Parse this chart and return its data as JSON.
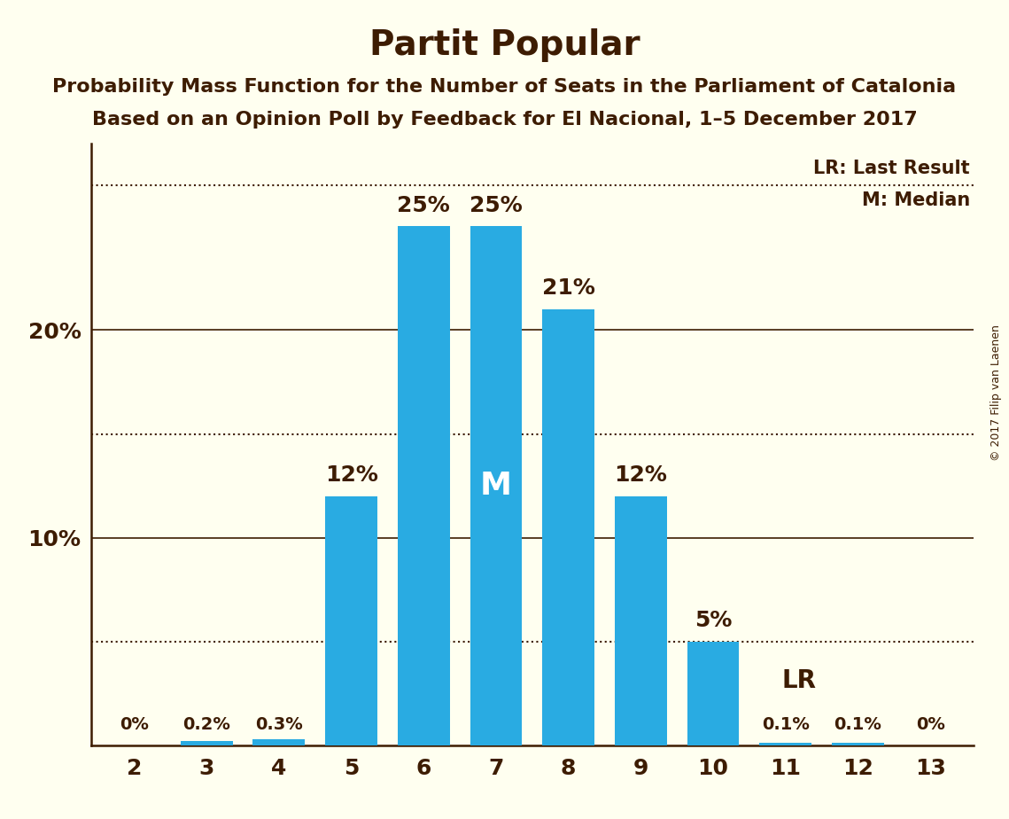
{
  "title": "Partit Popular",
  "subtitle1": "Probability Mass Function for the Number of Seats in the Parliament of Catalonia",
  "subtitle2": "Based on an Opinion Poll by Feedback for El Nacional, 1–5 December 2017",
  "copyright": "© 2017 Filip van Laenen",
  "categories": [
    2,
    3,
    4,
    5,
    6,
    7,
    8,
    9,
    10,
    11,
    12,
    13
  ],
  "values": [
    0.0,
    0.2,
    0.3,
    12.0,
    25.0,
    25.0,
    21.0,
    12.0,
    5.0,
    0.1,
    0.1,
    0.0
  ],
  "bar_color": "#29ABE2",
  "background_color": "#FFFFF0",
  "text_color": "#3D1C02",
  "bar_labels": [
    "0%",
    "0.2%",
    "0.3%",
    "12%",
    "25%",
    "25%",
    "21%",
    "12%",
    "5%",
    "0.1%",
    "0.1%",
    "0%"
  ],
  "median_seat": 7,
  "lr_seat": 11,
  "ylim": [
    0,
    29
  ],
  "solid_lines": [
    10.0,
    20.0
  ],
  "dotted_lines": [
    5.0,
    15.0,
    27.0
  ],
  "lr_label": "LR",
  "lr_legend": "LR: Last Result",
  "m_legend": "M: Median",
  "title_fontsize": 28,
  "subtitle_fontsize": 16,
  "bar_label_fontsize_small": 14,
  "bar_label_fontsize_large": 18,
  "tick_fontsize": 18,
  "ytick_labels_text": [
    "",
    "10%",
    "",
    "20%",
    ""
  ],
  "ytick_positions": [
    0,
    10,
    15,
    20,
    25
  ]
}
